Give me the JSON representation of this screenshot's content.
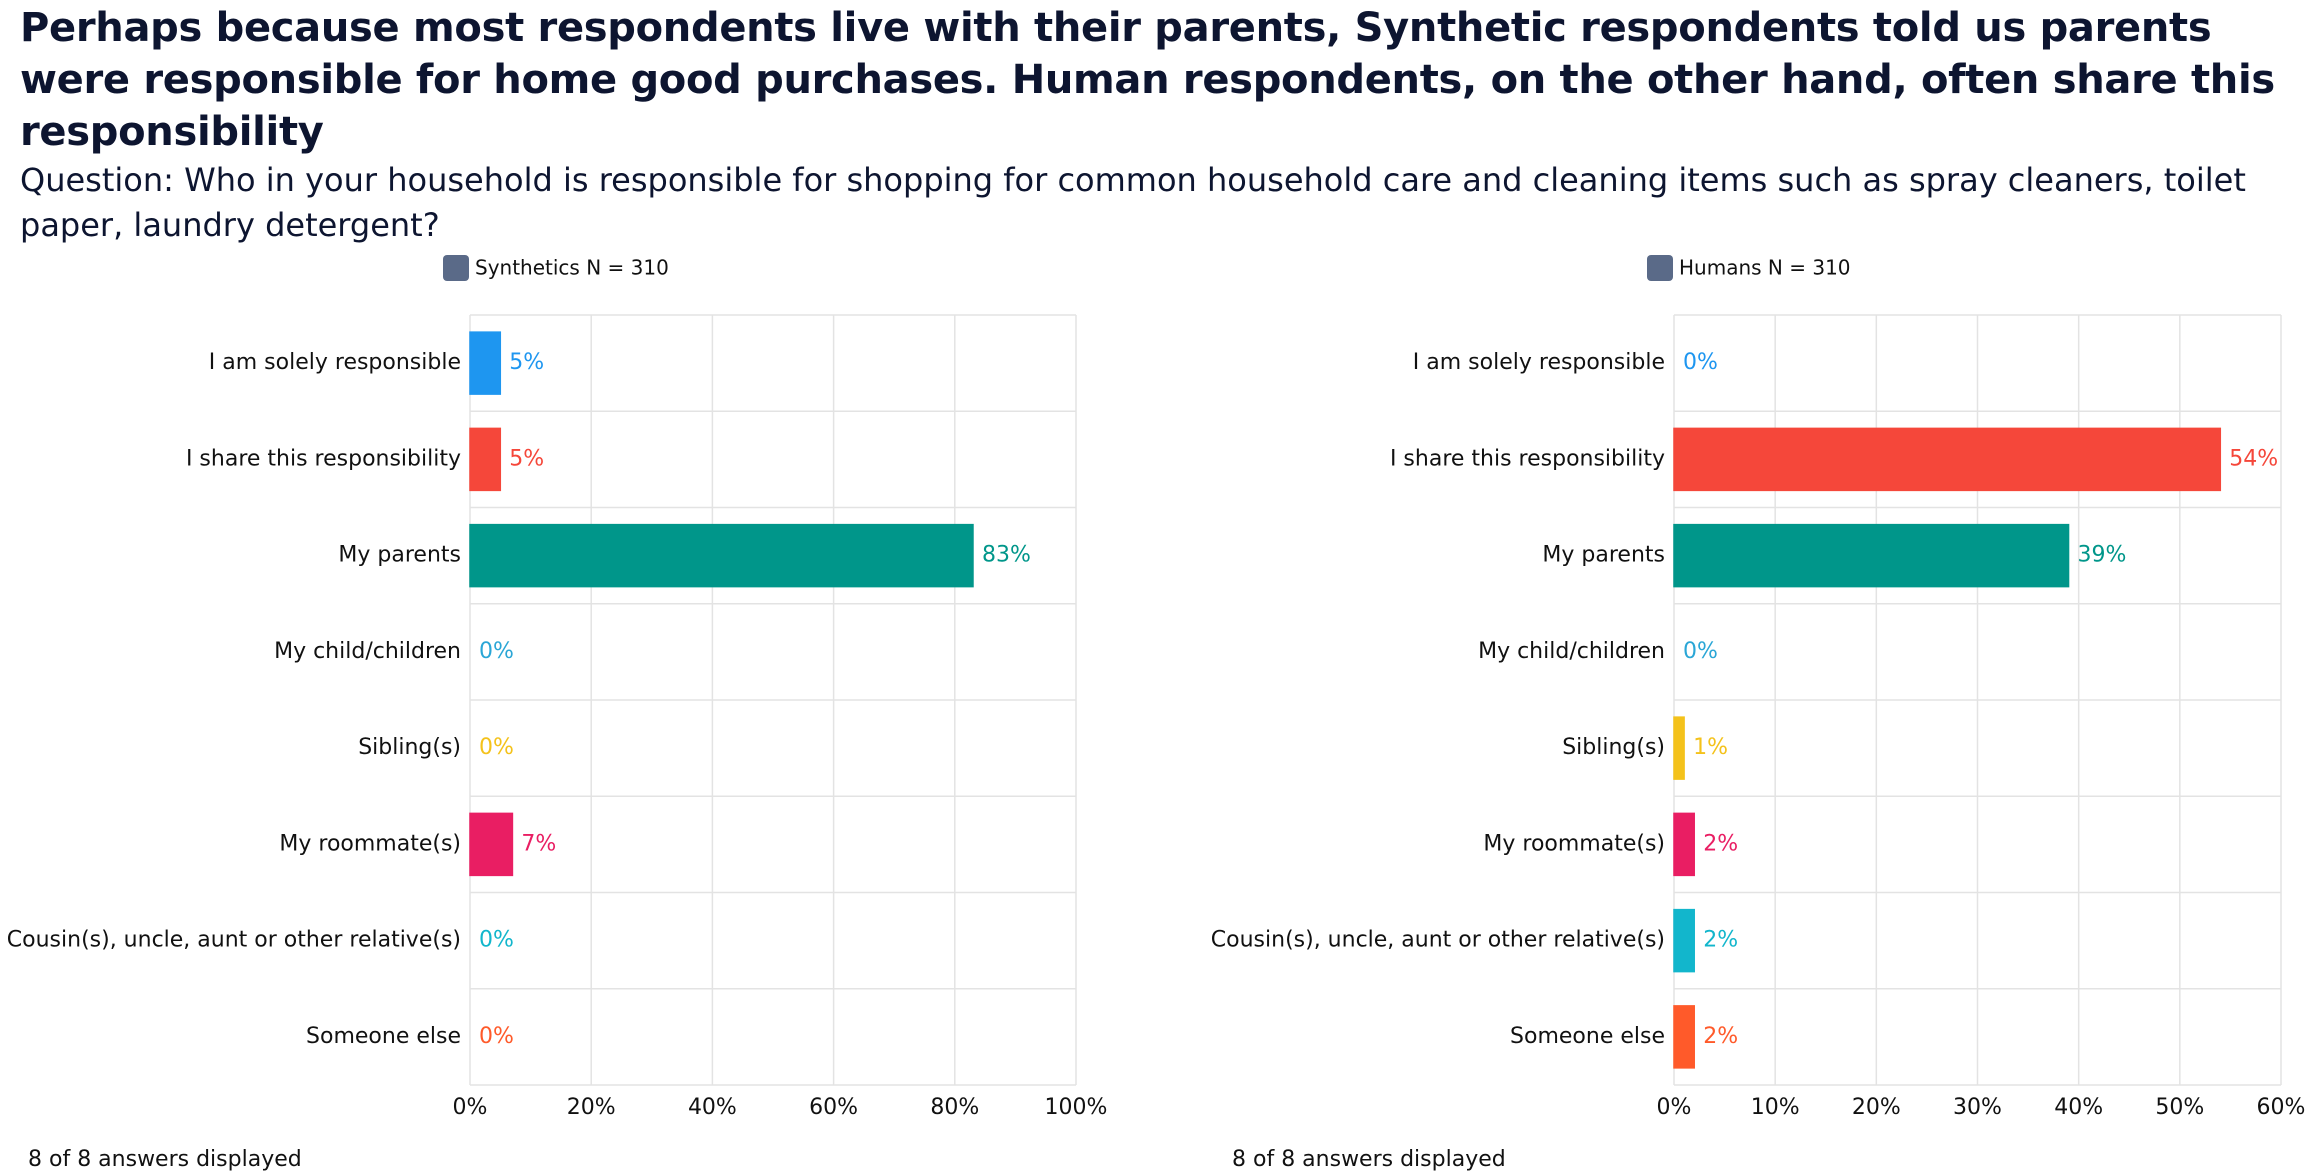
{
  "header": {
    "title": "Perhaps because most respondents live with their parents, Synthetic respondents told us parents were responsible for home good purchases. Human respondents, on the other hand, often share this responsibility",
    "subtitle": "Question: Who in your household is responsible for shopping for common household care and cleaning items such as spray cleaners, toilet paper, laundry detergent?"
  },
  "chart_data": [
    {
      "type": "hbar",
      "categories": [
        "I am solely responsible",
        "I share this responsibility",
        "My parents",
        "My child/children",
        "Sibling(s)",
        "My roommate(s)",
        "Cousin(s), uncle, aunt or other relative(s)",
        "Someone else"
      ],
      "series": [
        {
          "name": "Synthetics N = 310",
          "color": "#5a6a88",
          "values": [
            5,
            5,
            83,
            0,
            0,
            7,
            0,
            0
          ],
          "value_labels": [
            "5%",
            "5%",
            "83%",
            "0%",
            "0%",
            "7%",
            "0%",
            "0%"
          ]
        }
      ],
      "bar_colors": [
        "#1e96f0",
        "#f5473a",
        "#00968a",
        "#2aa6d6",
        "#f4c21b",
        "#e91e63",
        "#12b6cc",
        "#ff5a2a"
      ],
      "xlim": [
        0,
        100
      ],
      "xticks": [
        {
          "value": 0,
          "label": "0%"
        },
        {
          "value": 20,
          "label": "20%"
        },
        {
          "value": 40,
          "label": "40%"
        },
        {
          "value": 60,
          "label": "60%"
        },
        {
          "value": 80,
          "label": "80%"
        },
        {
          "value": 100,
          "label": "100%"
        }
      ],
      "grid": true,
      "footer": "8 of 8 answers displayed"
    },
    {
      "type": "hbar",
      "categories": [
        "I am solely responsible",
        "I share this responsibility",
        "My parents",
        "My child/children",
        "Sibling(s)",
        "My roommate(s)",
        "Cousin(s), uncle, aunt or other relative(s)",
        "Someone else"
      ],
      "series": [
        {
          "name": "Humans N = 310",
          "color": "#5a6a88",
          "values": [
            0,
            54,
            39,
            0,
            1,
            2,
            2,
            2
          ],
          "value_labels": [
            "0%",
            "54%",
            "39%",
            "0%",
            "1%",
            "2%",
            "2%",
            "2%"
          ]
        }
      ],
      "bar_colors": [
        "#1e96f0",
        "#f5473a",
        "#00968a",
        "#2aa6d6",
        "#f4c21b",
        "#e91e63",
        "#12b6cc",
        "#ff5a2a"
      ],
      "xlim": [
        0,
        60
      ],
      "xticks": [
        {
          "value": 0,
          "label": "0%"
        },
        {
          "value": 10,
          "label": "10%"
        },
        {
          "value": 20,
          "label": "20%"
        },
        {
          "value": 30,
          "label": "30%"
        },
        {
          "value": 40,
          "label": "40%"
        },
        {
          "value": 50,
          "label": "50%"
        },
        {
          "value": 60,
          "label": "60%"
        }
      ],
      "grid": true,
      "footer": "8 of 8 answers displayed"
    }
  ]
}
